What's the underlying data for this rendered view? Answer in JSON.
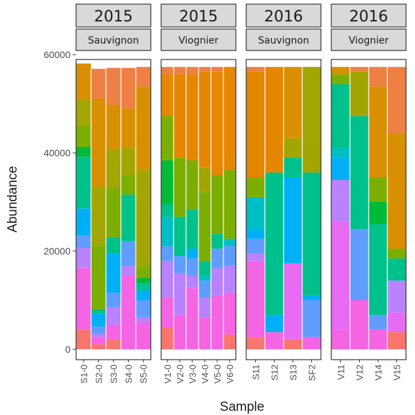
{
  "chart_data": {
    "type": "bar",
    "stacked": true,
    "faceted": true,
    "xlabel": "Sample",
    "ylabel": "Abundance",
    "ylim": [
      0,
      60000
    ],
    "yticks": [
      0,
      20000,
      40000,
      60000
    ],
    "ytick_labels": [
      "0",
      "20000",
      "40000",
      "60000"
    ],
    "grid": false,
    "legend": "none",
    "bar_total": 57500,
    "colors": [
      "#F8766D",
      "#F564E3",
      "#E76BF3",
      "#B983FF",
      "#619CFF",
      "#00B0F6",
      "#00BFC4",
      "#00C08B",
      "#00BA38",
      "#7CAE00",
      "#A3A500",
      "#D89000",
      "#E58700",
      "#EE8044"
    ],
    "panels": [
      {
        "year": "2015",
        "variety": "Sauvignon",
        "samples": [
          {
            "label": "S1-0",
            "segments": [
              4000,
              12500,
              0,
              4200,
              2500,
              5500,
              0,
              10500,
              2000,
              4500,
              5000,
              7500,
              0,
              0
            ]
          },
          {
            "label": "S2-0",
            "segments": [
              1000,
              1500,
              0,
              600,
              1500,
              2700,
              0,
              800,
              0,
              13000,
              12000,
              18000,
              0,
              6000
            ]
          },
          {
            "label": "S3-0",
            "segments": [
              2000,
              3000,
              0,
              3500,
              3000,
              8000,
              0,
              3300,
              0,
              10000,
              8000,
              9000,
              0,
              7500
            ]
          },
          {
            "label": "S4-0",
            "segments": [
              0,
              15000,
              0,
              2000,
              5000,
              0,
              0,
              9500,
              0,
              4000,
              5500,
              8000,
              0,
              8300
            ]
          },
          {
            "label": "S5-0",
            "segments": [
              0,
              5500,
              0,
              1000,
              3500,
              2000,
              0,
              1500,
              1000,
              2500,
              19500,
              17000,
              0,
              4000
            ]
          }
        ]
      },
      {
        "year": "2015",
        "variety": "Viognier",
        "samples": [
          {
            "label": "V1-0",
            "segments": [
              4500,
              6000,
              0,
              7500,
              3000,
              0,
              6000,
              2500,
              9000,
              9000,
              0,
              0,
              8500,
              1500
            ]
          },
          {
            "label": "V2-0",
            "segments": [
              0,
              7000,
              0,
              8500,
              3500,
              0,
              0,
              8000,
              0,
              12000,
              0,
              0,
              17000,
              1500
            ]
          },
          {
            "label": "V3-0",
            "segments": [
              0,
              12500,
              0,
              2500,
              3500,
              2000,
              0,
              8000,
              0,
              10000,
              0,
              0,
              17500,
              1500
            ]
          },
          {
            "label": "V4-0",
            "segments": [
              0,
              6500,
              0,
              4000,
              3500,
              0,
              1000,
              3000,
              0,
              14000,
              5000,
              0,
              19500,
              1000
            ]
          },
          {
            "label": "V5-0",
            "segments": [
              0,
              11000,
              0,
              5500,
              4000,
              0,
              0,
              3000,
              0,
              12000,
              0,
              0,
              21000,
              1000
            ]
          },
          {
            "label": "V6-0",
            "segments": [
              3000,
              8500,
              0,
              5500,
              4000,
              0,
              1500,
              0,
              0,
              14000,
              0,
              0,
              21000,
              0
            ]
          }
        ]
      },
      {
        "year": "2016",
        "variety": "Sauvignon",
        "samples": [
          {
            "label": "S11",
            "segments": [
              2500,
              15500,
              0,
              1500,
              3000,
              2000,
              6500,
              0,
              0,
              4000,
              0,
              0,
              21500,
              1000
            ]
          },
          {
            "label": "S12",
            "segments": [
              0,
              3500,
              0,
              0,
              0,
              3500,
              0,
              29000,
              0,
              0,
              0,
              0,
              21500,
              0
            ]
          },
          {
            "label": "S13",
            "segments": [
              2000,
              0,
              15500,
              0,
              0,
              17500,
              0,
              4000,
              0,
              0,
              4000,
              14500,
              0,
              0
            ]
          },
          {
            "label": "SF2",
            "segments": [
              0,
              2500,
              0,
              0,
              7500,
              1000,
              0,
              25000,
              0,
              0,
              21500,
              0,
              0,
              0
            ]
          }
        ]
      },
      {
        "year": "2016",
        "variety": "Viognier",
        "samples": [
          {
            "label": "V11",
            "segments": [
              0,
              4000,
              22000,
              8500,
              0,
              4500,
              2000,
              13000,
              0,
              2000,
              0,
              1500,
              0,
              0
            ]
          },
          {
            "label": "V12",
            "segments": [
              0,
              10000,
              0,
              0,
              14500,
              0,
              0,
              23000,
              0,
              0,
              9000,
              0,
              0,
              1000
            ]
          },
          {
            "label": "V14",
            "segments": [
              0,
              4000,
              0,
              0,
              3000,
              0,
              0,
              18500,
              4500,
              5000,
              0,
              18500,
              0,
              4000
            ]
          },
          {
            "label": "V15",
            "segments": [
              3500,
              0,
              4000,
              6500,
              0,
              0,
              0,
              4500,
              0,
              2000,
              0,
              23500,
              0,
              13500
            ]
          }
        ]
      }
    ]
  }
}
